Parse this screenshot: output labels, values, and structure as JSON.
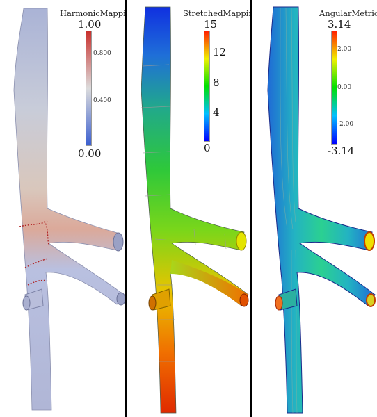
{
  "panels": [
    {
      "title": "HarmonicMapping",
      "ticks_big": [
        "1.00",
        "0.00"
      ],
      "ticks_small": [
        "0.800",
        "0.400"
      ],
      "colors": {
        "low": "#3b5fd0",
        "mid": "#dcdcdc",
        "high": "#c9302c"
      }
    },
    {
      "title": "StretchedMapping",
      "ticks_big": [
        "15",
        "12",
        "8",
        "4",
        "0"
      ],
      "ticks_small": [],
      "colors": {
        "low": "#0000ff",
        "mid": "#00c800",
        "high": "#ff2000"
      }
    },
    {
      "title": "AngularMetric",
      "ticks_big": [
        "3.14",
        "-3.14"
      ],
      "ticks_small": [
        "2.00",
        "0.00",
        "-2.00"
      ],
      "colors": {
        "low": "#0000ff",
        "mid": "#00ff80",
        "high": "#ff4000"
      }
    }
  ]
}
